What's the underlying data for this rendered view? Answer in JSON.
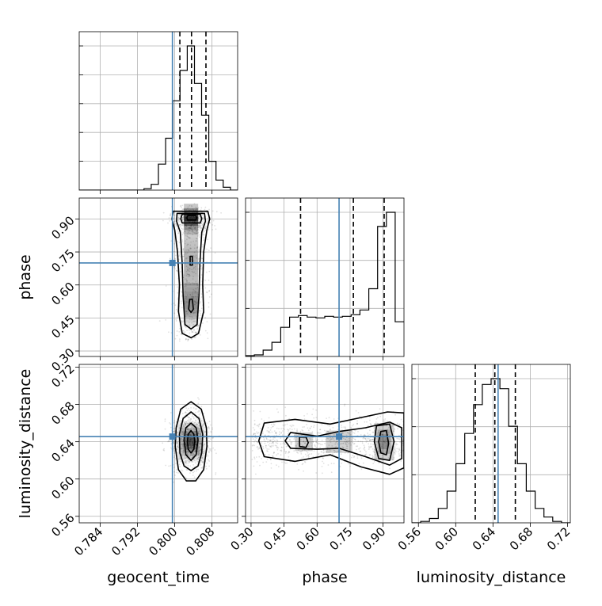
{
  "chart_data": {
    "type": "corner",
    "parameters": [
      "geocent_time",
      "phase",
      "luminosity_distance"
    ],
    "truths": {
      "geocent_time": 0.7995,
      "phase": 0.7,
      "luminosity_distance": 0.6455
    },
    "ranges": {
      "geocent_time": [
        0.7795,
        0.8135
      ],
      "phase": [
        0.275,
        0.995
      ],
      "luminosity_distance": [
        0.553,
        0.723
      ]
    },
    "ticks": {
      "geocent_time": {
        "values": [
          0.784,
          0.792,
          0.8,
          0.808
        ],
        "labels": [
          "0.784",
          "0.792",
          "0.800",
          "0.808"
        ]
      },
      "phase": {
        "values": [
          0.3,
          0.45,
          0.6,
          0.75,
          0.9
        ],
        "labels": [
          "0.30",
          "0.45",
          "0.60",
          "0.75",
          "0.90"
        ]
      },
      "luminosity_distance": {
        "values": [
          0.56,
          0.6,
          0.64,
          0.68,
          0.72
        ],
        "labels": [
          "0.56",
          "0.60",
          "0.64",
          "0.68",
          "0.72"
        ]
      }
    },
    "quantiles": {
      "geocent_time": [
        0.8011,
        0.8036,
        0.8067
      ],
      "phase": [
        0.525,
        0.765,
        0.905
      ],
      "luminosity_distance": [
        0.621,
        0.642,
        0.664
      ]
    },
    "histograms": {
      "geocent_time": {
        "edges_range": [
          0.7795,
          0.8135
        ],
        "counts": [
          0,
          0,
          0,
          0,
          0,
          0,
          0,
          0,
          0,
          1,
          4,
          18,
          36,
          62,
          83,
          100,
          74,
          52,
          20,
          7,
          2,
          0
        ]
      },
      "phase": {
        "edges_range": [
          0.275,
          0.995
        ],
        "counts": [
          1,
          2,
          8,
          18,
          37,
          50,
          52,
          50,
          49,
          51,
          50,
          51,
          53,
          59,
          86,
          165,
          183,
          44
        ]
      },
      "luminosity_distance": {
        "edges_range": [
          0.553,
          0.723
        ],
        "counts": [
          0,
          1,
          3,
          10,
          22,
          41,
          62,
          82,
          96,
          100,
          93,
          67,
          41,
          22,
          10,
          4,
          1,
          0
        ]
      }
    },
    "density_2d": [
      {
        "x": "geocent_time",
        "y": "phase",
        "center_x": 0.8035,
        "blobs": [
          {
            "y": 0.905,
            "sy": 0.03,
            "w": 1
          },
          {
            "y": 0.69,
            "sy": 0.12,
            "w": 0.32
          },
          {
            "y": 0.51,
            "sy": 0.05,
            "w": 0.4
          }
        ],
        "contours": [
          {
            "level": 1,
            "points": [
              [
                0.7997,
                0.935
              ],
              [
                0.8071,
                0.935
              ],
              [
                0.8075,
                0.9
              ],
              [
                0.8069,
                0.85
              ],
              [
                0.8062,
                0.75
              ],
              [
                0.806,
                0.6
              ],
              [
                0.8062,
                0.48
              ],
              [
                0.8051,
                0.38
              ],
              [
                0.8035,
                0.36
              ],
              [
                0.8016,
                0.38
              ],
              [
                0.8008,
                0.48
              ],
              [
                0.801,
                0.6
              ],
              [
                0.8006,
                0.75
              ],
              [
                0.8,
                0.85
              ],
              [
                0.7994,
                0.9
              ]
            ]
          },
          {
            "level": 2,
            "points": [
              [
                0.8005,
                0.925
              ],
              [
                0.8064,
                0.925
              ],
              [
                0.8066,
                0.89
              ],
              [
                0.8058,
                0.84
              ],
              [
                0.8054,
                0.7
              ],
              [
                0.8052,
                0.55
              ],
              [
                0.8048,
                0.42
              ],
              [
                0.8035,
                0.4
              ],
              [
                0.8022,
                0.42
              ],
              [
                0.8018,
                0.55
              ],
              [
                0.8016,
                0.7
              ],
              [
                0.8012,
                0.84
              ],
              [
                0.8004,
                0.89
              ]
            ]
          },
          {
            "level": 3,
            "points": [
              [
                0.8016,
                0.922
              ],
              [
                0.8055,
                0.922
              ],
              [
                0.8058,
                0.9
              ],
              [
                0.8055,
                0.882
              ],
              [
                0.8016,
                0.882
              ],
              [
                0.8013,
                0.9
              ]
            ]
          },
          {
            "level": 4,
            "points": [
              [
                0.8028,
                0.915
              ],
              [
                0.8045,
                0.915
              ],
              [
                0.8047,
                0.905
              ],
              [
                0.8045,
                0.895
              ],
              [
                0.8028,
                0.895
              ],
              [
                0.8026,
                0.905
              ]
            ]
          },
          {
            "level": 5,
            "points": [
              [
                0.8032,
                0.535
              ],
              [
                0.8038,
                0.535
              ],
              [
                0.804,
                0.49
              ],
              [
                0.8035,
                0.475
              ],
              [
                0.803,
                0.49
              ]
            ]
          },
          {
            "level": 6,
            "points": [
              [
                0.8033,
                0.73
              ],
              [
                0.8038,
                0.73
              ],
              [
                0.8038,
                0.69
              ],
              [
                0.8033,
                0.69
              ]
            ]
          }
        ]
      },
      {
        "x": "geocent_time",
        "y": "luminosity_distance",
        "contours": [
          {
            "level": 1,
            "points": [
              [
                0.8035,
                0.683
              ],
              [
                0.8057,
                0.675
              ],
              [
                0.8068,
                0.655
              ],
              [
                0.8069,
                0.635
              ],
              [
                0.8062,
                0.61
              ],
              [
                0.8045,
                0.598
              ],
              [
                0.8025,
                0.598
              ],
              [
                0.8008,
                0.61
              ],
              [
                0.8001,
                0.635
              ],
              [
                0.8003,
                0.655
              ],
              [
                0.8013,
                0.675
              ]
            ]
          },
          {
            "level": 2,
            "points": [
              [
                0.8035,
                0.672
              ],
              [
                0.8052,
                0.665
              ],
              [
                0.806,
                0.648
              ],
              [
                0.8058,
                0.628
              ],
              [
                0.805,
                0.614
              ],
              [
                0.8035,
                0.609
              ],
              [
                0.802,
                0.614
              ],
              [
                0.8011,
                0.628
              ],
              [
                0.801,
                0.648
              ],
              [
                0.8018,
                0.665
              ]
            ]
          },
          {
            "level": 3,
            "points": [
              [
                0.8035,
                0.66
              ],
              [
                0.8046,
                0.655
              ],
              [
                0.805,
                0.642
              ],
              [
                0.8046,
                0.626
              ],
              [
                0.8035,
                0.62
              ],
              [
                0.8024,
                0.626
              ],
              [
                0.802,
                0.642
              ],
              [
                0.8024,
                0.655
              ]
            ]
          },
          {
            "level": 4,
            "points": [
              [
                0.8035,
                0.652
              ],
              [
                0.8041,
                0.648
              ],
              [
                0.8043,
                0.64
              ],
              [
                0.8041,
                0.632
              ],
              [
                0.8035,
                0.628
              ],
              [
                0.8029,
                0.632
              ],
              [
                0.8027,
                0.64
              ],
              [
                0.8029,
                0.648
              ]
            ]
          }
        ]
      },
      {
        "x": "phase",
        "y": "luminosity_distance",
        "contours": [
          {
            "level": 1,
            "points": [
              [
                0.36,
                0.66
              ],
              [
                0.5,
                0.664
              ],
              [
                0.66,
                0.659
              ],
              [
                0.8,
                0.666
              ],
              [
                0.92,
                0.672
              ],
              [
                0.995,
                0.671
              ],
              [
                0.995,
                0.612
              ],
              [
                0.93,
                0.605
              ],
              [
                0.8,
                0.613
              ],
              [
                0.66,
                0.626
              ],
              [
                0.5,
                0.619
              ],
              [
                0.36,
                0.624
              ],
              [
                0.335,
                0.641
              ]
            ]
          },
          {
            "level": 2,
            "points": [
              [
                0.48,
                0.65
              ],
              [
                0.6,
                0.646
              ],
              [
                0.7,
                0.651
              ],
              [
                0.82,
                0.655
              ],
              [
                0.93,
                0.661
              ],
              [
                0.985,
                0.655
              ],
              [
                0.985,
                0.622
              ],
              [
                0.93,
                0.615
              ],
              [
                0.82,
                0.624
              ],
              [
                0.7,
                0.633
              ],
              [
                0.6,
                0.632
              ],
              [
                0.48,
                0.633
              ],
              [
                0.455,
                0.641
              ]
            ]
          },
          {
            "level": 3,
            "points": [
              [
                0.87,
                0.657
              ],
              [
                0.93,
                0.659
              ],
              [
                0.95,
                0.64
              ],
              [
                0.93,
                0.62
              ],
              [
                0.88,
                0.622
              ],
              [
                0.86,
                0.64
              ]
            ]
          },
          {
            "level": 4,
            "points": [
              [
                0.89,
                0.651
              ],
              [
                0.915,
                0.652
              ],
              [
                0.925,
                0.638
              ],
              [
                0.915,
                0.626
              ],
              [
                0.89,
                0.628
              ],
              [
                0.88,
                0.64
              ]
            ]
          },
          {
            "level": 5,
            "points": [
              [
                0.52,
                0.645
              ],
              [
                0.55,
                0.645
              ],
              [
                0.56,
                0.639
              ],
              [
                0.55,
                0.634
              ],
              [
                0.52,
                0.635
              ]
            ]
          }
        ]
      }
    ]
  }
}
